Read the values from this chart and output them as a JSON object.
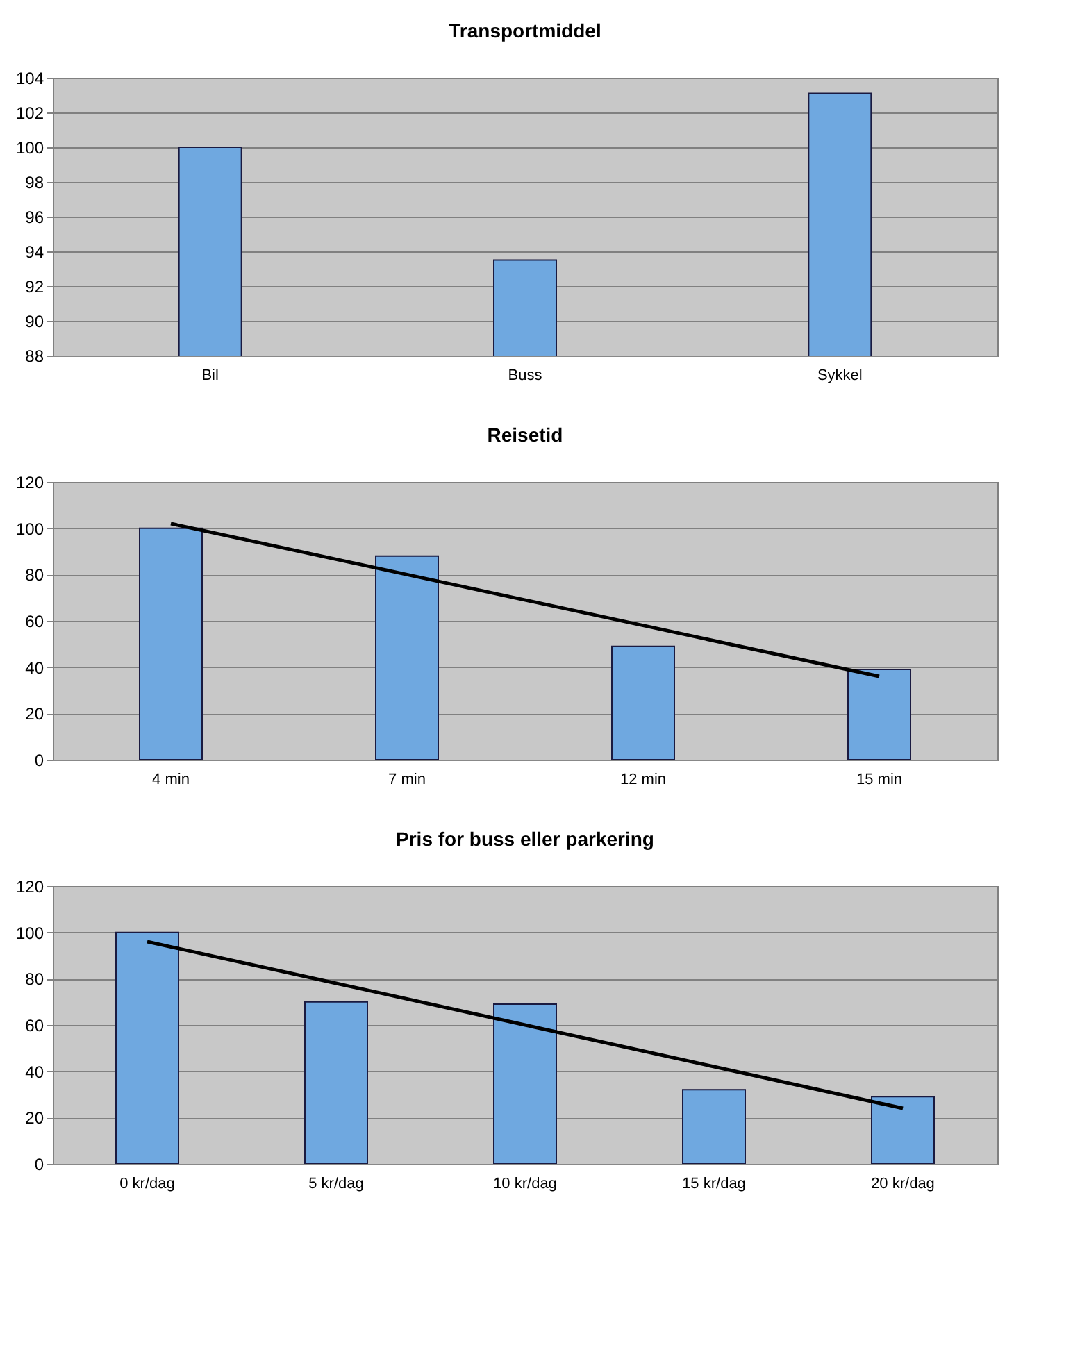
{
  "chart_data": [
    {
      "type": "bar",
      "title": "Transportmiddel",
      "categories": [
        "Bil",
        "Buss",
        "Sykkel"
      ],
      "series": [
        {
          "color": "#6fa8e0",
          "values": [
            100,
            93.5,
            103.1
          ]
        }
      ],
      "ylim": [
        88,
        104
      ],
      "yticks": [
        88,
        90,
        92,
        94,
        96,
        98,
        100,
        102,
        104
      ],
      "grid": "y"
    },
    {
      "type": "bar",
      "title": "Reisetid",
      "categories": [
        "4 min",
        "7 min",
        "12 min",
        "15 min"
      ],
      "series": [
        {
          "color": "#6fa8e0",
          "values": [
            100,
            88,
            49,
            39
          ]
        },
        {
          "type": "line",
          "color": "#000000",
          "values": [
            102,
            80,
            58,
            36
          ]
        }
      ],
      "ylim": [
        0,
        120
      ],
      "yticks": [
        0,
        20,
        40,
        60,
        80,
        100,
        120
      ],
      "grid": "y"
    },
    {
      "type": "bar",
      "title": "Pris for buss eller parkering",
      "categories": [
        "0 kr/dag",
        "5 kr/dag",
        "10 kr/dag",
        "15 kr/dag",
        "20 kr/dag"
      ],
      "series": [
        {
          "color": "#6fa8e0",
          "values": [
            100,
            70,
            69,
            32,
            29
          ]
        },
        {
          "type": "line",
          "color": "#000000",
          "values": [
            96,
            78,
            60,
            42,
            24
          ]
        }
      ],
      "ylim": [
        0,
        120
      ],
      "yticks": [
        0,
        20,
        40,
        60,
        80,
        100,
        120
      ],
      "grid": "y"
    }
  ]
}
